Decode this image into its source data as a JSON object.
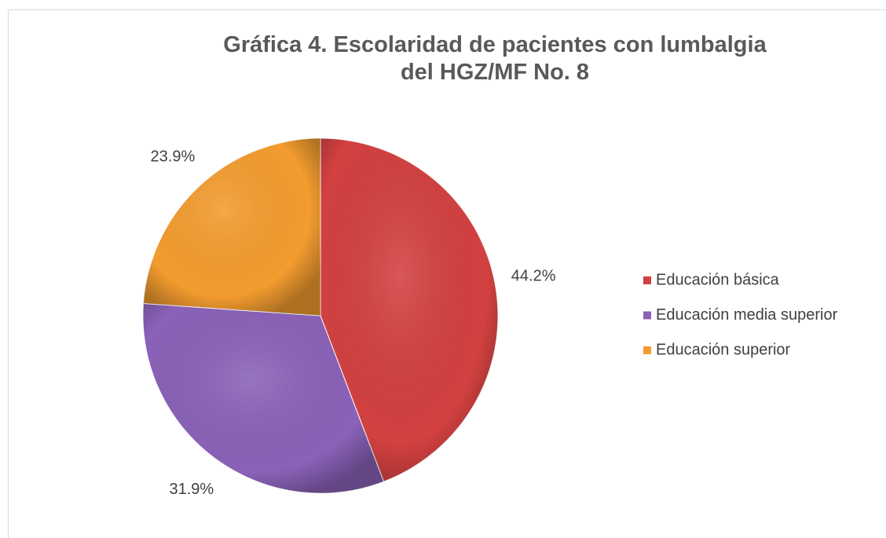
{
  "chart_data": {
    "type": "pie",
    "title": "Gráfica 4. Escolaridad de pacientes con lumbalgia del HGZ/MF No. 8",
    "categories": [
      "Educación básica",
      "Educación media superior",
      "Educación superior"
    ],
    "values": [
      44.2,
      31.9,
      23.9
    ],
    "value_labels": [
      "44.2%",
      "31.9%",
      "23.9%"
    ],
    "colors": [
      "#d24140",
      "#8a62b8",
      "#f39c2f"
    ],
    "legend": "right"
  }
}
